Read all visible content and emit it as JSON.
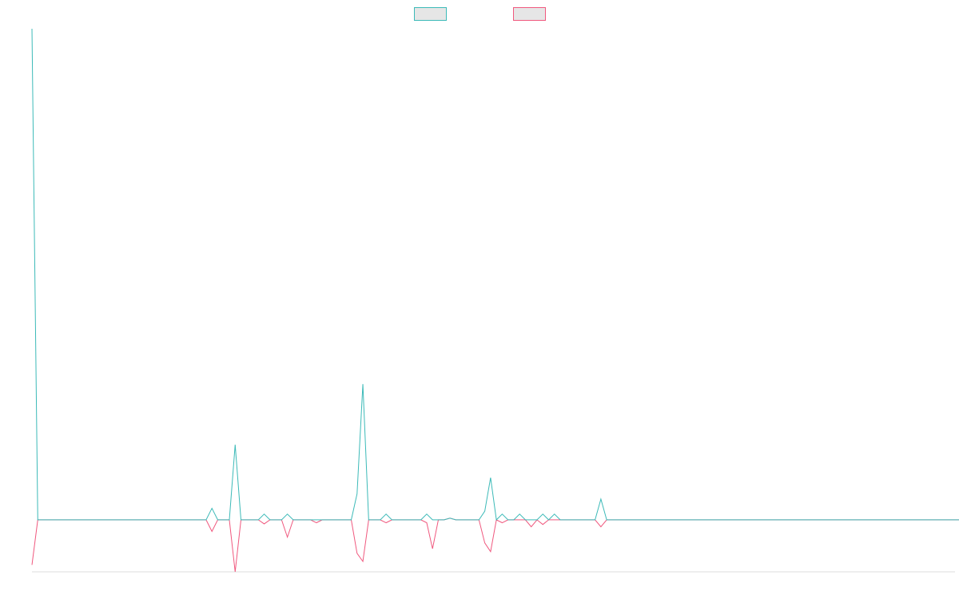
{
  "chart_data": {
    "type": "line",
    "title": "",
    "xlabel": "",
    "ylabel": "",
    "grid": false,
    "legend_position": "top-center",
    "xlim": [
      0,
      159
    ],
    "ylim": [
      -9,
      85
    ],
    "series": [
      {
        "color": "#3cbab8",
        "legend_fill": "#e6e6e6",
        "values": [
          85,
          0,
          0,
          0,
          0,
          0,
          0,
          0,
          0,
          0,
          0,
          0,
          0,
          0,
          0,
          0,
          0,
          0,
          0,
          0,
          0,
          0,
          0,
          0,
          0,
          0,
          0,
          0,
          0,
          0,
          0,
          2,
          0,
          0,
          0,
          13,
          0,
          0,
          0,
          0,
          1,
          0,
          0,
          0,
          1,
          0,
          0,
          0,
          0,
          0,
          0,
          0,
          0,
          0,
          0,
          0,
          4.5,
          23.5,
          0,
          0,
          0,
          1,
          0,
          0,
          0,
          0,
          0,
          0,
          1,
          0,
          0,
          0,
          0.3,
          0,
          0,
          0,
          0,
          0,
          1.5,
          7.3,
          0,
          1,
          0,
          0,
          1,
          0,
          0,
          0,
          1,
          0,
          1,
          0,
          0,
          0,
          0,
          0,
          0,
          0,
          3.6,
          0,
          0,
          0,
          0,
          0,
          0,
          0,
          0,
          0,
          0,
          0,
          0,
          0,
          0,
          0,
          0,
          0,
          0,
          0,
          0,
          0,
          0,
          0,
          0,
          0,
          0,
          0,
          0,
          0,
          0,
          0,
          0,
          0,
          0,
          0,
          0,
          0,
          0,
          0,
          0,
          0,
          0,
          0,
          0,
          0,
          0,
          0,
          0,
          0,
          0,
          0,
          0,
          0,
          0,
          0,
          0,
          0,
          0,
          0,
          0,
          0,
          0,
          0
        ]
      },
      {
        "color": "#f0587e",
        "legend_fill": "#e6e6e6",
        "values": [
          -7.8,
          0,
          0,
          0,
          0,
          0,
          0,
          0,
          0,
          0,
          0,
          0,
          0,
          0,
          0,
          0,
          0,
          0,
          0,
          0,
          0,
          0,
          0,
          0,
          0,
          0,
          0,
          0,
          0,
          0,
          0,
          -2,
          0,
          0,
          0,
          -9,
          0,
          0,
          0,
          0,
          -0.7,
          0,
          0,
          0,
          -3,
          0,
          0,
          0,
          0,
          -0.5,
          0,
          0,
          0,
          0,
          0,
          0,
          -5.8,
          -7.2,
          0,
          0,
          0,
          -0.5,
          0,
          0,
          0,
          0,
          0,
          0,
          -0.5,
          -5,
          0,
          0,
          0.3,
          0,
          0,
          0,
          0,
          0,
          -4,
          -5.5,
          0,
          -0.5,
          0,
          0,
          0,
          0,
          -1.2,
          0,
          -0.8,
          0,
          0,
          0,
          0,
          0,
          0,
          0,
          0,
          0,
          -1.2,
          0,
          0,
          0,
          0,
          0,
          0,
          0,
          0,
          0,
          0,
          0,
          0,
          0,
          0,
          0,
          0,
          0,
          0,
          0,
          0,
          0,
          0,
          0,
          0,
          0,
          0,
          0,
          0,
          0,
          0,
          0,
          0,
          0,
          0,
          0,
          0,
          0,
          0,
          0,
          0,
          0,
          0,
          0,
          0,
          0,
          0,
          0,
          0,
          0,
          0,
          0,
          0,
          0,
          0,
          0,
          0,
          0,
          0,
          0,
          0,
          0,
          0,
          0
        ]
      }
    ]
  }
}
